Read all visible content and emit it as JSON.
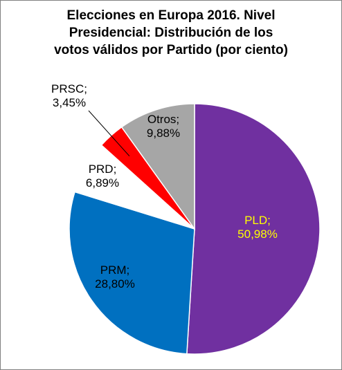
{
  "chart_data": {
    "type": "pie",
    "title": [
      "Elecciones en Europa 2016. Nivel",
      "Presidencial: Distribución de los",
      "votos válidos por Partido (por ciento)"
    ],
    "slices": [
      {
        "name": "PLD",
        "value": 50.98,
        "label": [
          "PLD;",
          "50,98%"
        ],
        "color": "#7030A0",
        "label_color": "#FFFF00"
      },
      {
        "name": "PRM",
        "value": 28.8,
        "label": [
          "PRM;",
          "28,80%"
        ],
        "color": "#0070C0",
        "label_color": "#000000"
      },
      {
        "name": "PRD",
        "value": 6.89,
        "label": [
          "PRD;",
          "6,89%"
        ],
        "color": "#FFFFFF",
        "label_color": "#000000"
      },
      {
        "name": "PRSC",
        "value": 3.45,
        "label": [
          "PRSC;",
          "3,45%"
        ],
        "color": "#FF0000",
        "label_color": "#000000",
        "leader_line": true
      },
      {
        "name": "Otros",
        "value": 9.88,
        "label": [
          "Otros;",
          "9,88%"
        ],
        "color": "#A6A6A6",
        "label_color": "#000000"
      }
    ],
    "start_angle": "12 o'clock",
    "direction": "clockwise",
    "legend": "none"
  }
}
